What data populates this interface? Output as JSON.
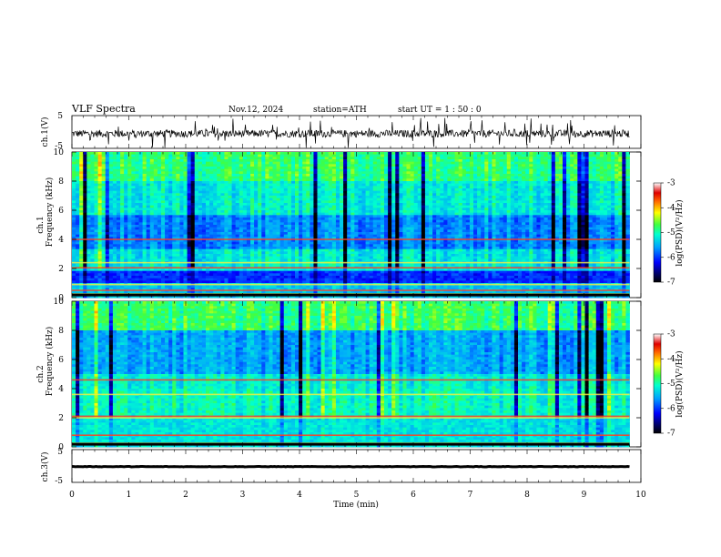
{
  "header": {
    "title": "VLF  Spectra",
    "date": "Nov.12, 2024",
    "station": "station=ATH",
    "start_ut": "start  UT  =   1  : 50 : 0"
  },
  "chart_data": [
    {
      "type": "line",
      "panel": "ch1-waveform",
      "ylabel": "ch.1(V)",
      "ylim": [
        -5,
        5
      ],
      "yticks": [
        "5",
        "-5"
      ],
      "xlim": [
        0,
        10
      ],
      "x_extent_min": 9.8,
      "series": [
        {
          "mean": -0.5,
          "noise_amplitude": 1.6,
          "spikes": true
        }
      ]
    },
    {
      "type": "heatmap",
      "panel": "ch1-spectrogram",
      "ylabel": "ch.1\nFrequency  (kHz)",
      "ylabel_lines": [
        "ch.1",
        "Frequency  (kHz)"
      ],
      "ylim": [
        0,
        10
      ],
      "yticks": [
        "0",
        "2",
        "4",
        "6",
        "8",
        "10"
      ],
      "xlim": [
        0,
        10
      ],
      "x_extent_min": 9.8,
      "colorbar": {
        "label": "log(PSD)(V²/Hz)",
        "range": [
          -7,
          -3
        ],
        "ticks": [
          "-3",
          "-4",
          "-5",
          "-6",
          "-7"
        ]
      },
      "dark_bands_khz": [
        [
          1.0,
          1.9
        ],
        [
          3.3,
          5.6
        ]
      ],
      "hum_lines_khz": [
        0.25,
        0.5,
        0.9,
        2.05,
        2.4,
        4.0
      ]
    },
    {
      "type": "heatmap",
      "panel": "ch2-spectrogram",
      "ylabel": "ch.2\nFrequency  (kHz)",
      "ylabel_lines": [
        "ch.2",
        "Frequency  (kHz)"
      ],
      "ylim": [
        0,
        10
      ],
      "yticks": [
        "0",
        "2",
        "4",
        "6",
        "8",
        "10"
      ],
      "xlim": [
        0,
        10
      ],
      "x_extent_min": 9.8,
      "colorbar": {
        "label": "log(PSD)(V²/Hz)",
        "range": [
          -7,
          -3
        ],
        "ticks": [
          "-3",
          "-4",
          "-5",
          "-6",
          "-7"
        ]
      },
      "dark_bands_khz": [
        [
          5.0,
          7.5
        ]
      ],
      "hum_lines_khz": [
        0.25,
        0.8,
        2.0,
        2.1,
        3.6,
        4.6
      ]
    },
    {
      "type": "line",
      "panel": "ch3-waveform",
      "ylabel": "ch.3(V)",
      "ylim": [
        -5,
        5
      ],
      "yticks": [
        "5",
        "-5"
      ],
      "xlim": [
        0,
        10
      ],
      "x_extent_min": 9.8,
      "series": [
        {
          "mean": -0.2,
          "noise_amplitude": 0.15
        }
      ]
    }
  ],
  "xaxis": {
    "label": "Time  (min)",
    "ticks": [
      "0",
      "1",
      "2",
      "3",
      "4",
      "5",
      "6",
      "7",
      "8",
      "9",
      "10"
    ]
  },
  "colorbar_label": "log(PSD)(V²/Hz)",
  "colorbar_ticks": [
    "-3",
    "-4",
    "-5",
    "-6",
    "-7"
  ]
}
